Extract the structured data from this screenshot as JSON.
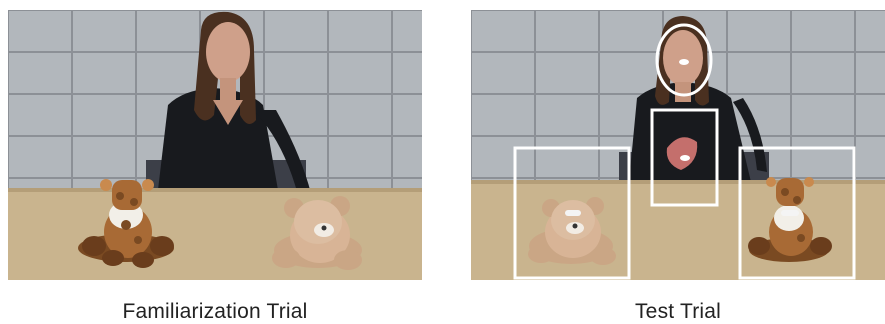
{
  "figure": {
    "panels": [
      {
        "caption": "Familiarization Trial"
      },
      {
        "caption": "Test Trial"
      }
    ]
  },
  "colors": {
    "wall_tile": "#aeb3b8",
    "wall_grout": "#8a8f95",
    "table": "#c9b48e",
    "shirt": "#181a1e",
    "hair": "#4a3020",
    "skin": "#cfa08a",
    "aoi_outline": "#ffffff",
    "giraffe": "#a86a35",
    "bear": "#d8b496"
  },
  "icons": [
    "giraffe-plush",
    "teddy-bear-plush",
    "aoi-ellipse",
    "aoi-rectangle"
  ]
}
